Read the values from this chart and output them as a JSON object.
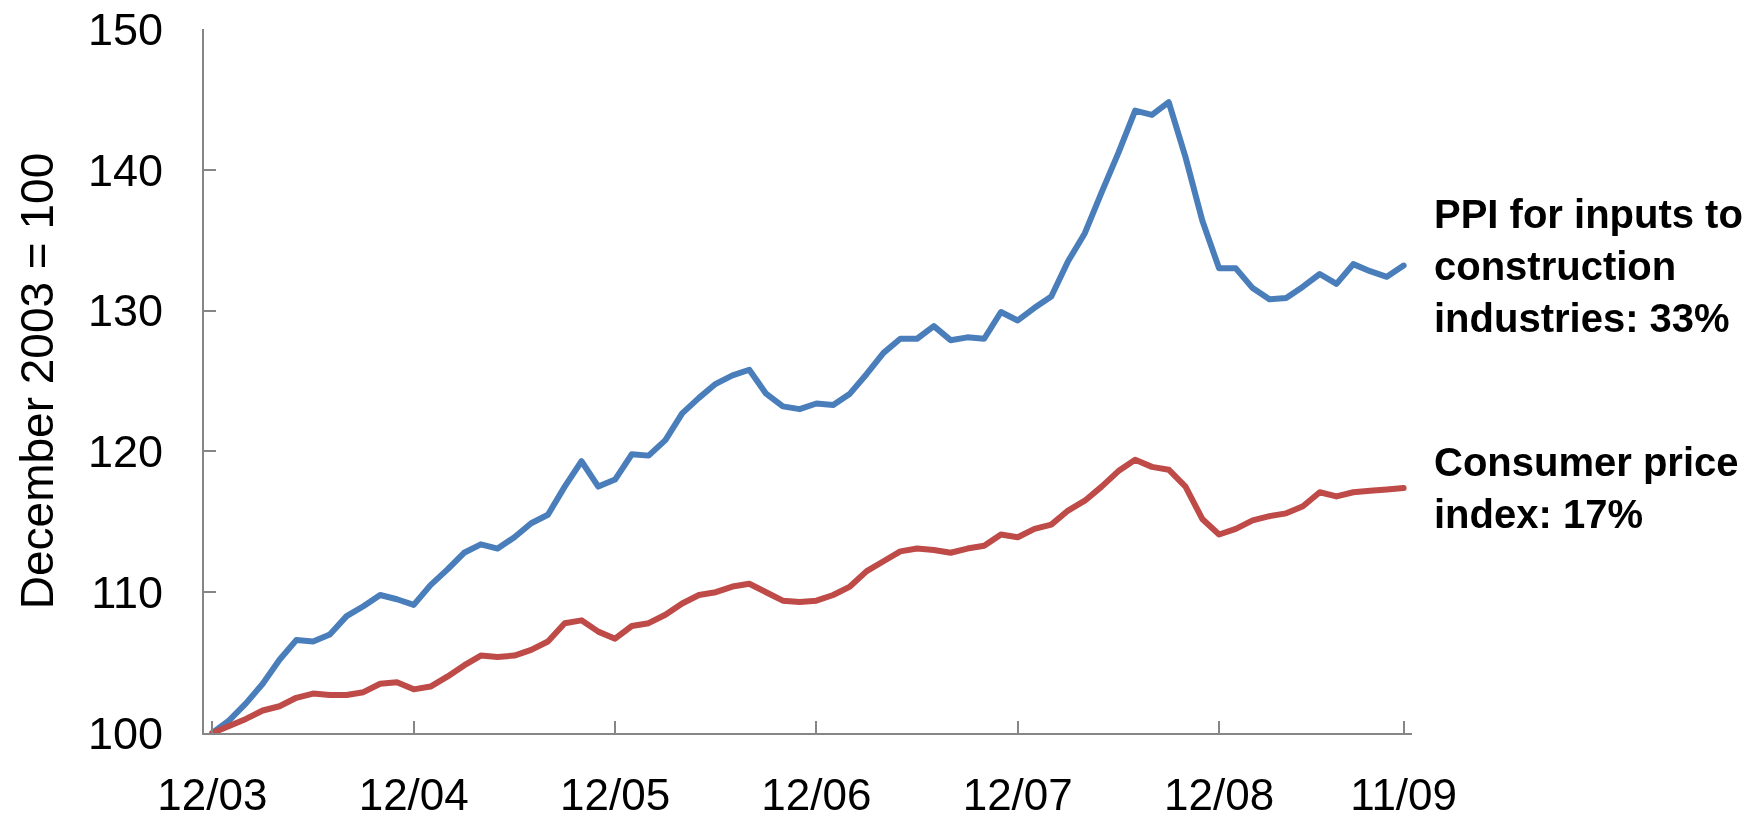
{
  "chart_data": {
    "type": "line",
    "ylabel": "December 2003 = 100",
    "categories": [
      "12/03",
      null,
      null,
      null,
      null,
      null,
      null,
      null,
      null,
      null,
      null,
      null,
      "12/04",
      null,
      null,
      null,
      null,
      null,
      null,
      null,
      null,
      null,
      null,
      null,
      "12/05",
      null,
      null,
      null,
      null,
      null,
      null,
      null,
      null,
      null,
      null,
      null,
      "12/06",
      null,
      null,
      null,
      null,
      null,
      null,
      null,
      null,
      null,
      null,
      null,
      "12/07",
      null,
      null,
      null,
      null,
      null,
      null,
      null,
      null,
      null,
      null,
      null,
      "12/08",
      null,
      null,
      null,
      null,
      null,
      null,
      null,
      null,
      null,
      null,
      "11/09"
    ],
    "ylim": [
      100,
      150
    ],
    "yticks": [
      100,
      110,
      120,
      130,
      140,
      150
    ],
    "line_style": "solid",
    "series": [
      {
        "name": "PPI for inputs to construction industries: 33%",
        "color": "#4a7ebb",
        "values": [
          100.0,
          100.9,
          102.1,
          103.5,
          105.2,
          106.6,
          106.5,
          107.0,
          108.3,
          109.0,
          109.8,
          109.5,
          109.1,
          110.5,
          111.6,
          112.8,
          113.4,
          113.1,
          113.9,
          114.9,
          115.5,
          117.5,
          119.3,
          117.5,
          118.0,
          119.8,
          119.7,
          120.8,
          122.7,
          123.8,
          124.8,
          125.4,
          125.8,
          124.1,
          123.2,
          123.0,
          123.4,
          123.3,
          124.1,
          125.5,
          127.0,
          128.0,
          128.0,
          128.9,
          127.9,
          128.1,
          128.0,
          129.9,
          129.3,
          130.2,
          131.0,
          133.5,
          135.5,
          138.4,
          141.2,
          144.2,
          143.9,
          144.8,
          140.9,
          136.4,
          133.0,
          133.0,
          131.6,
          130.8,
          130.9,
          131.7,
          132.6,
          131.9,
          133.3,
          132.8,
          132.4,
          133.2
        ]
      },
      {
        "name": "Consumer price index: 17%",
        "color": "#be4b48",
        "values": [
          100.0,
          100.5,
          101.0,
          101.6,
          101.9,
          102.5,
          102.8,
          102.7,
          102.7,
          102.9,
          103.5,
          103.6,
          103.1,
          103.3,
          104.0,
          104.8,
          105.5,
          105.4,
          105.5,
          105.9,
          106.5,
          107.8,
          108.0,
          107.2,
          106.7,
          107.6,
          107.8,
          108.4,
          109.2,
          109.8,
          110.0,
          110.4,
          110.6,
          110.0,
          109.4,
          109.3,
          109.4,
          109.8,
          110.4,
          111.5,
          112.2,
          112.9,
          113.1,
          113.0,
          112.8,
          113.1,
          113.3,
          114.1,
          113.9,
          114.5,
          114.8,
          115.8,
          116.5,
          117.5,
          118.6,
          119.4,
          118.9,
          118.7,
          117.5,
          115.2,
          114.1,
          114.5,
          115.1,
          115.4,
          115.6,
          116.1,
          117.1,
          116.8,
          117.1,
          117.2,
          117.3,
          117.4
        ]
      }
    ]
  }
}
